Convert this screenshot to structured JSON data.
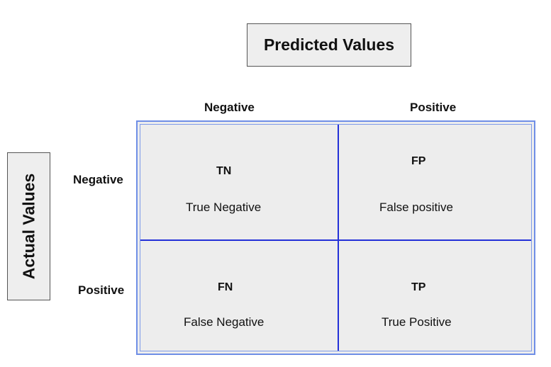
{
  "predicted_label": "Predicted Values",
  "actual_label": "Actual Values",
  "columns": [
    "Negative",
    "Positive"
  ],
  "rows": [
    "Negative",
    "Positive"
  ],
  "cells": {
    "tn": {
      "abbr": "TN",
      "full": "True Negative"
    },
    "fp": {
      "abbr": "FP",
      "full": "False positive"
    },
    "fn": {
      "abbr": "FN",
      "full": "False Negative"
    },
    "tp": {
      "abbr": "TP",
      "full": "True Positive"
    }
  },
  "colors": {
    "matrix_fill": "#ededed",
    "matrix_border": "#6f8ee6",
    "divider": "#2330d8",
    "label_fill": "#eeeeee"
  }
}
